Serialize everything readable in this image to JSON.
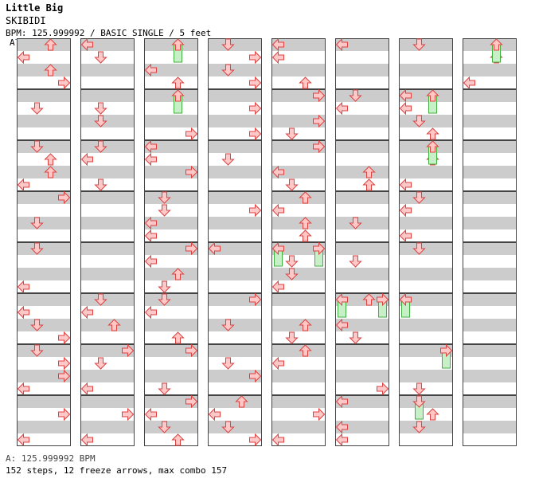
{
  "song": {
    "title": "Little Big",
    "artist": "SKIBIDI",
    "info": "BPM: 125.999992 / BASIC SINGLE / 5 feet"
  },
  "bpm_marker": "A",
  "footer": {
    "bpm": "A: 125.999992 BPM",
    "stats": "152 steps, 12 freeze arrows, max combo 157"
  },
  "colors": {
    "arrow_fill": "#ffc8c8",
    "arrow_stroke": "#e04040",
    "freeze_fill": "#c8f0c8",
    "freeze_stroke": "#40b040",
    "band": "#cccccc",
    "border": "#444444"
  },
  "chart_data": {
    "type": "step-chart",
    "columns": 8,
    "measures_per_column": 8,
    "last_column_measures": 1,
    "lanes": [
      "left",
      "down",
      "up",
      "right"
    ],
    "note_positions_in_sixteenths": "0-15 per measure",
    "notes": [
      [
        0,
        0,
        [
          "1",
          0
        ]
      ],
      [
        0,
        2,
        [
          "2",
          0
        ]
      ],
      [
        0,
        4,
        [
          "3",
          0
        ]
      ],
      [
        0,
        6,
        [
          "5",
          0
        ]
      ],
      [
        0,
        7,
        [
          "5",
          3
        ]
      ],
      [
        0,
        9,
        [
          "5",
          1
        ]
      ],
      [
        0,
        10,
        [
          "4",
          2
        ]
      ],
      [
        0,
        11,
        [
          "4",
          3
        ]
      ],
      [
        0,
        12,
        [
          "4",
          1
        ]
      ],
      [
        0,
        13,
        [
          "2",
          2
        ]
      ],
      [
        0,
        14,
        [
          "2",
          0
        ]
      ],
      [
        0,
        15,
        [
          "3",
          1
        ]
      ],
      [
        1,
        0,
        [
          "0",
          1
        ]
      ],
      [
        1,
        1,
        [
          "0",
          0
        ]
      ],
      [
        1,
        2,
        [
          "0",
          3
        ]
      ],
      [
        1,
        3,
        [
          "6",
          1
        ]
      ],
      [
        1,
        4,
        [
          "6",
          2
        ]
      ],
      [
        1,
        5,
        [
          "6",
          0
        ]
      ],
      [
        1,
        6,
        [
          "6",
          3
        ]
      ],
      [
        1,
        7,
        [
          "2",
          1
        ]
      ],
      [
        1,
        8,
        [
          "1",
          1
        ]
      ],
      [
        1,
        9,
        [
          "2",
          3
        ]
      ],
      [
        1,
        10,
        [
          "2",
          1
        ]
      ],
      [
        1,
        11,
        [
          "2",
          0
        ]
      ],
      [
        1,
        12,
        [
          "2",
          3
        ]
      ],
      [
        1,
        13,
        [
          "4",
          1
        ]
      ],
      [
        1,
        14,
        [
          "3",
          0
        ]
      ],
      [
        1,
        15,
        [
          "5",
          1
        ]
      ]
    ],
    "freezes": [
      [
        2,
        0,
        2
      ],
      [
        2,
        1,
        2
      ],
      [
        4,
        4,
        0
      ],
      [
        4,
        4,
        3
      ],
      [
        5,
        5,
        0
      ],
      [
        5,
        5,
        3
      ],
      [
        6,
        1,
        2
      ],
      [
        6,
        2,
        2
      ],
      [
        6,
        5,
        0
      ],
      [
        6,
        6,
        3
      ],
      [
        6,
        7,
        1
      ],
      [
        7,
        0,
        2
      ]
    ]
  }
}
